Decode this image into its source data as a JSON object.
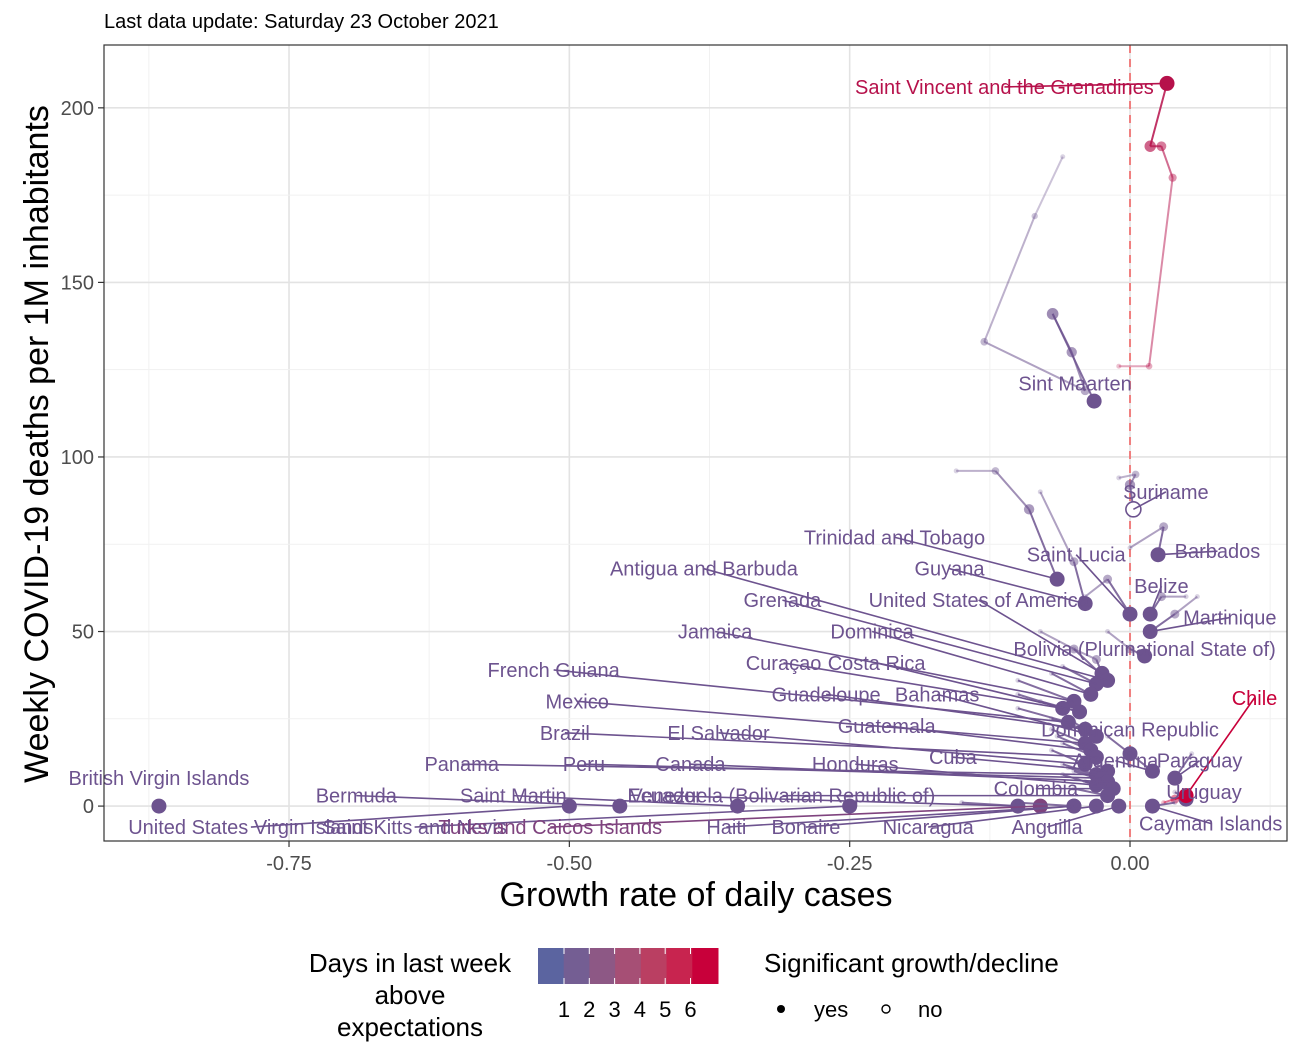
{
  "subtitle": "Last data update: Saturday 23 October 2021",
  "chart_data": {
    "type": "scatter",
    "xlabel": "Growth rate of daily cases",
    "ylabel": "Weekly COVID-19 deaths per 1M inhabitants",
    "xlim": [
      -0.915,
      0.14
    ],
    "ylim": [
      -10,
      218
    ],
    "x_ticks": [
      -0.75,
      -0.5,
      -0.25,
      0.0
    ],
    "x_tick_labels": [
      "-0.75",
      "-0.50",
      "-0.25",
      "0.00"
    ],
    "y_ticks": [
      0,
      50,
      100,
      150,
      200
    ],
    "y_tick_labels": [
      "0",
      "50",
      "100",
      "150",
      "200"
    ],
    "grid": true,
    "reference_line": {
      "x": 0.0,
      "style": "dashed",
      "color": "#f07f7f"
    },
    "color_scale": {
      "low": "#5b64a0",
      "high": "#c8003a"
    },
    "legend_color": {
      "title": [
        "Days in last week",
        "above",
        "expectations"
      ],
      "labels": [
        "1",
        "2",
        "3",
        "4",
        "5",
        "6"
      ],
      "colors": [
        "#5b64a0",
        "#745e93",
        "#8d5885",
        "#a64f75",
        "#ba3f62",
        "#c8244f",
        "#c8003a"
      ],
      "position": "bottom"
    },
    "legend_shape": {
      "title": "Significant growth/decline",
      "entries": [
        "yes",
        "no"
      ],
      "position": "bottom"
    },
    "countries": [
      {
        "name": "Saint Vincent and the Grenadines",
        "days": 5,
        "sig": true,
        "trail": [
          [
            -0.01,
            126
          ],
          [
            0.017,
            126
          ],
          [
            0.038,
            180
          ],
          [
            0.028,
            189
          ],
          [
            0.018,
            189
          ],
          [
            0.033,
            207
          ]
        ],
        "label_x": -0.112,
        "label_y": 206
      },
      {
        "name": "Sint Maarten",
        "days": 1,
        "sig": true,
        "trail": [
          [
            -0.06,
            186
          ],
          [
            -0.085,
            169
          ],
          [
            -0.13,
            133
          ],
          [
            -0.04,
            119
          ],
          [
            -0.052,
            130
          ],
          [
            -0.069,
            141
          ],
          [
            -0.032,
            116
          ]
        ],
        "label_x": -0.049,
        "label_y": 121
      },
      {
        "name": "Suriname",
        "days": 1,
        "sig": false,
        "trail": [
          [
            -0.01,
            94
          ],
          [
            0.005,
            95
          ],
          [
            0.0,
            92
          ],
          [
            0.003,
            85
          ]
        ],
        "label_x": 0.032,
        "label_y": 90
      },
      {
        "name": "Trinidad and Tobago",
        "days": 1,
        "sig": true,
        "trail": [
          [
            -0.155,
            96
          ],
          [
            -0.12,
            96
          ],
          [
            -0.09,
            85
          ],
          [
            -0.065,
            65
          ]
        ],
        "label_x": -0.21,
        "label_y": 77
      },
      {
        "name": "Barbados",
        "days": 1,
        "sig": true,
        "trail": [
          [
            0.0,
            74
          ],
          [
            0.03,
            80
          ],
          [
            0.025,
            72
          ]
        ],
        "label_x": 0.078,
        "label_y": 73
      },
      {
        "name": "Saint Lucia",
        "days": 1,
        "sig": true,
        "trail": [
          [
            -0.04,
            60
          ],
          [
            -0.02,
            65
          ],
          [
            0.0,
            55
          ]
        ],
        "label_x": -0.048,
        "label_y": 72
      },
      {
        "name": "Belize",
        "days": 1,
        "sig": true,
        "trail": [
          [
            0.05,
            60
          ],
          [
            0.028,
            60
          ],
          [
            0.018,
            55
          ]
        ],
        "label_x": 0.028,
        "label_y": 63
      },
      {
        "name": "Martinique",
        "days": 1,
        "sig": true,
        "trail": [
          [
            0.06,
            60
          ],
          [
            0.04,
            55
          ],
          [
            0.018,
            50
          ]
        ],
        "label_x": 0.089,
        "label_y": 54
      },
      {
        "name": "Bolivia (Plurinational State of)",
        "days": 1,
        "sig": true,
        "trail": [
          [
            -0.02,
            50
          ],
          [
            0.0,
            45
          ],
          [
            0.013,
            43
          ]
        ],
        "label_x": 0.013,
        "label_y": 45
      },
      {
        "name": "United States of America",
        "days": 1,
        "sig": true,
        "trail": [
          [
            -0.05,
            45
          ],
          [
            -0.03,
            42
          ],
          [
            -0.025,
            38
          ]
        ],
        "label_x": -0.135,
        "label_y": 59
      },
      {
        "name": "Guyana",
        "days": 1,
        "sig": true,
        "trail": [
          [
            -0.08,
            90
          ],
          [
            -0.05,
            70
          ],
          [
            -0.04,
            58
          ]
        ],
        "label_x": -0.161,
        "label_y": 68
      },
      {
        "name": "Antigua and Barbuda",
        "days": 1,
        "sig": true,
        "trail": [
          [
            -0.08,
            50
          ],
          [
            -0.05,
            45
          ],
          [
            -0.02,
            36
          ]
        ],
        "label_x": -0.38,
        "label_y": 68
      },
      {
        "name": "Grenada",
        "days": 1,
        "sig": true,
        "trail": [
          [
            -0.06,
            40
          ],
          [
            -0.03,
            35
          ]
        ],
        "label_x": -0.31,
        "label_y": 59
      },
      {
        "name": "Dominica",
        "days": 1,
        "sig": true,
        "trail": [
          [
            -0.07,
            38
          ],
          [
            -0.035,
            32
          ]
        ],
        "label_x": -0.23,
        "label_y": 50
      },
      {
        "name": "Jamaica",
        "days": 1,
        "sig": true,
        "trail": [
          [
            -0.1,
            36
          ],
          [
            -0.05,
            30
          ]
        ],
        "label_x": -0.37,
        "label_y": 50
      },
      {
        "name": "Curaçao",
        "days": 1,
        "sig": true,
        "trail": [
          [
            -0.1,
            32
          ],
          [
            -0.06,
            28
          ]
        ],
        "label_x": -0.309,
        "label_y": 41
      },
      {
        "name": "Costa Rica",
        "days": 1,
        "sig": true,
        "trail": [
          [
            -0.08,
            30
          ],
          [
            -0.045,
            27
          ]
        ],
        "label_x": -0.226,
        "label_y": 41
      },
      {
        "name": "French Guiana",
        "days": 1,
        "sig": true,
        "trail": [
          [
            -0.1,
            28
          ],
          [
            -0.055,
            24
          ]
        ],
        "label_x": -0.514,
        "label_y": 39
      },
      {
        "name": "Guadeloupe",
        "days": 1,
        "sig": true,
        "trail": [
          [
            -0.07,
            25
          ],
          [
            -0.04,
            22
          ]
        ],
        "label_x": -0.271,
        "label_y": 32
      },
      {
        "name": "Bahamas",
        "days": 1,
        "sig": true,
        "trail": [
          [
            -0.05,
            24
          ],
          [
            -0.03,
            20
          ]
        ],
        "label_x": -0.172,
        "label_y": 32
      },
      {
        "name": "Mexico",
        "days": 1,
        "sig": true,
        "trail": [
          [
            -0.07,
            22
          ],
          [
            -0.04,
            18
          ]
        ],
        "label_x": -0.493,
        "label_y": 30
      },
      {
        "name": "Guatemala",
        "days": 1,
        "sig": true,
        "trail": [
          [
            -0.065,
            20
          ],
          [
            -0.035,
            16
          ]
        ],
        "label_x": -0.217,
        "label_y": 23
      },
      {
        "name": "Dominican Republic",
        "days": 1,
        "sig": true,
        "trail": [
          [
            -0.02,
            20
          ],
          [
            0.0,
            15
          ]
        ],
        "label_x": 0.0,
        "label_y": 22
      },
      {
        "name": "Brazil",
        "days": 1,
        "sig": true,
        "trail": [
          [
            -0.06,
            18
          ],
          [
            -0.03,
            14
          ]
        ],
        "label_x": -0.504,
        "label_y": 21
      },
      {
        "name": "El Salvador",
        "days": 1,
        "sig": true,
        "trail": [
          [
            -0.07,
            16
          ],
          [
            -0.04,
            12
          ]
        ],
        "label_x": -0.367,
        "label_y": 21
      },
      {
        "name": "Cuba",
        "days": 1,
        "sig": true,
        "trail": [
          [
            -0.04,
            14
          ],
          [
            -0.02,
            10
          ]
        ],
        "label_x": -0.158,
        "label_y": 14
      },
      {
        "name": "Argentina",
        "days": 1,
        "sig": true,
        "trail": [
          [
            0.0,
            15
          ],
          [
            0.02,
            10
          ]
        ],
        "label_x": -0.013,
        "label_y": 13
      },
      {
        "name": "Paraguay",
        "days": 1,
        "sig": true,
        "trail": [
          [
            0.055,
            15
          ],
          [
            0.04,
            8
          ]
        ],
        "label_x": 0.062,
        "label_y": 13
      },
      {
        "name": "Panama",
        "days": 1,
        "sig": true,
        "trail": [
          [
            -0.06,
            12
          ],
          [
            -0.03,
            9
          ]
        ],
        "label_x": -0.596,
        "label_y": 12
      },
      {
        "name": "Peru",
        "days": 1,
        "sig": true,
        "trail": [
          [
            -0.055,
            11
          ],
          [
            -0.025,
            8
          ]
        ],
        "label_x": -0.487,
        "label_y": 12
      },
      {
        "name": "Canada",
        "days": 1,
        "sig": true,
        "trail": [
          [
            -0.05,
            10
          ],
          [
            -0.02,
            7
          ]
        ],
        "label_x": -0.392,
        "label_y": 12
      },
      {
        "name": "Honduras",
        "days": 1,
        "sig": true,
        "trail": [
          [
            -0.06,
            9
          ],
          [
            -0.03,
            6
          ]
        ],
        "label_x": -0.245,
        "label_y": 12
      },
      {
        "name": "Colombia",
        "days": 1,
        "sig": true,
        "trail": [
          [
            -0.04,
            7
          ],
          [
            -0.015,
            5
          ]
        ],
        "label_x": -0.084,
        "label_y": 5
      },
      {
        "name": "Venezuela (Bolivarian Republic of)",
        "days": 1,
        "sig": true,
        "trail": [
          [
            -0.05,
            5
          ],
          [
            -0.02,
            3
          ]
        ],
        "label_x": -0.31,
        "label_y": 3
      },
      {
        "name": "Uruguay",
        "days": 1,
        "sig": true,
        "trail": [
          [
            0.04,
            4
          ],
          [
            0.05,
            2
          ]
        ],
        "label_x": 0.066,
        "label_y": 4
      },
      {
        "name": "Chile",
        "days": 6,
        "sig": true,
        "trail": [
          [
            0.03,
            1
          ],
          [
            0.04,
            2
          ],
          [
            0.05,
            3
          ]
        ],
        "label_x": 0.111,
        "label_y": 31
      },
      {
        "name": "British Virgin Islands",
        "days": 1,
        "sig": true,
        "trail": [
          [
            -0.866,
            0
          ]
        ],
        "label_x": -0.866,
        "label_y": 8
      },
      {
        "name": "Bermuda",
        "days": 1,
        "sig": true,
        "trail": [
          [
            -0.455,
            0
          ]
        ],
        "label_x": -0.69,
        "label_y": 3
      },
      {
        "name": "Saint Martin",
        "days": 1,
        "sig": true,
        "trail": [
          [
            -0.35,
            0
          ]
        ],
        "label_x": -0.55,
        "label_y": 3
      },
      {
        "name": "Ecuador",
        "days": 1,
        "sig": true,
        "trail": [
          [
            -0.15,
            1
          ],
          [
            -0.1,
            0
          ]
        ],
        "label_x": -0.415,
        "label_y": 3
      },
      {
        "name": "United States Virgin Islands",
        "days": 1,
        "sig": true,
        "trail": [
          [
            -0.5,
            0
          ]
        ],
        "label_x": -0.784,
        "label_y": -6
      },
      {
        "name": "Saint Kitts and Nevis",
        "days": 1,
        "sig": true,
        "trail": [
          [
            -0.25,
            0
          ]
        ],
        "label_x": -0.638,
        "label_y": -6
      },
      {
        "name": "Turks and Caicos Islands",
        "days": 2,
        "sig": true,
        "trail": [
          [
            -0.08,
            0
          ]
        ],
        "label_x": -0.517,
        "label_y": -6
      },
      {
        "name": "Haiti",
        "days": 1,
        "sig": true,
        "trail": [
          [
            -0.1,
            1
          ],
          [
            -0.05,
            0
          ]
        ],
        "label_x": -0.36,
        "label_y": -6
      },
      {
        "name": "Bonaire",
        "days": 1,
        "sig": true,
        "trail": [
          [
            -0.05,
            0
          ]
        ],
        "label_x": -0.289,
        "label_y": -6
      },
      {
        "name": "Nicaragua",
        "days": 1,
        "sig": true,
        "trail": [
          [
            -0.03,
            0
          ]
        ],
        "label_x": -0.18,
        "label_y": -6
      },
      {
        "name": "Anguilla",
        "days": 1,
        "sig": true,
        "trail": [
          [
            -0.01,
            0
          ]
        ],
        "label_x": -0.074,
        "label_y": -6
      },
      {
        "name": "Cayman Islands",
        "days": 1,
        "sig": true,
        "trail": [
          [
            0.04,
            1
          ],
          [
            0.02,
            0
          ]
        ],
        "label_x": 0.072,
        "label_y": -5
      }
    ]
  }
}
